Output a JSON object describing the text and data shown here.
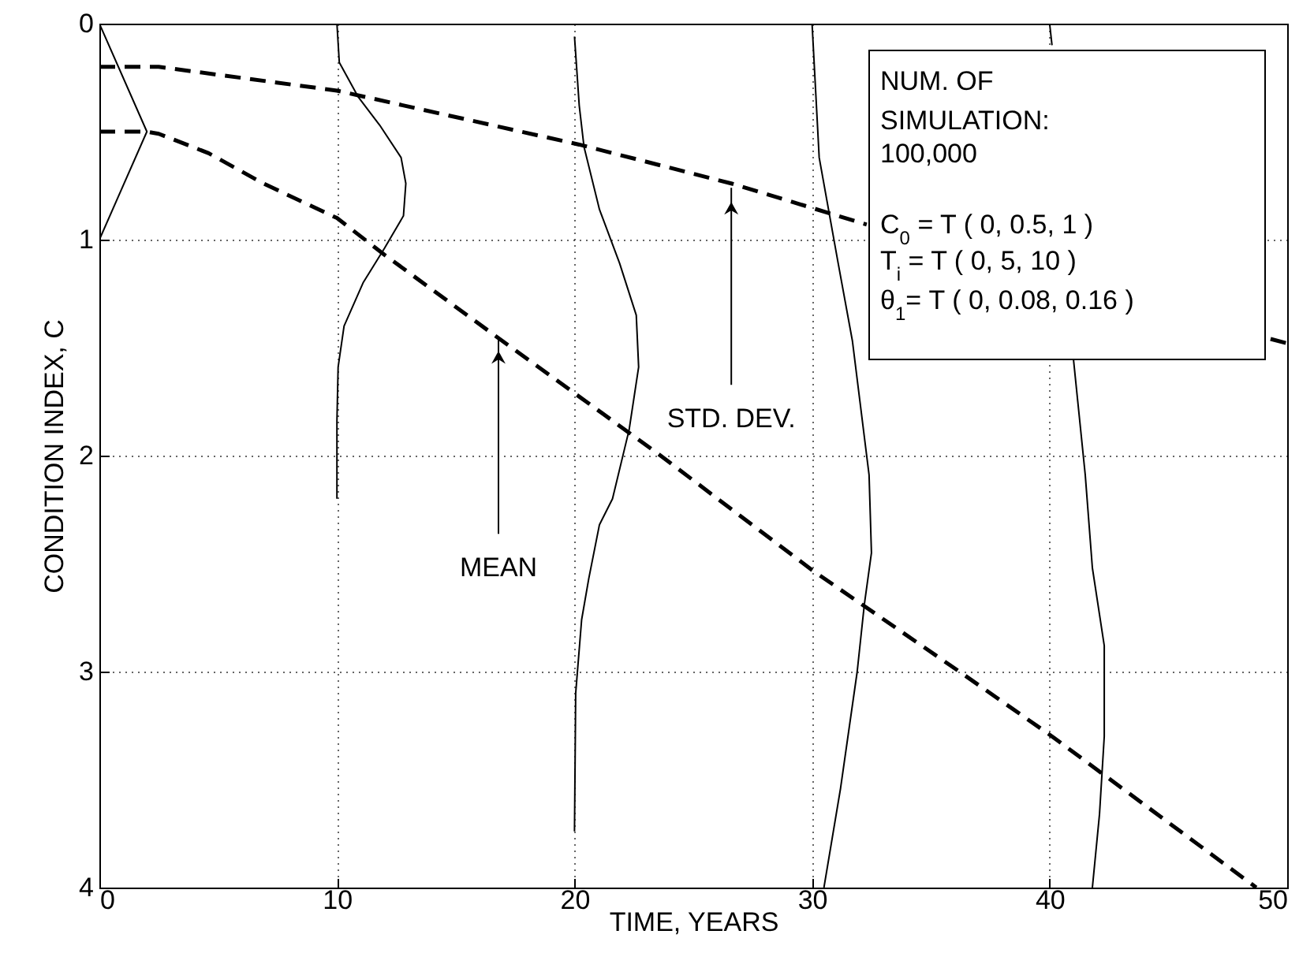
{
  "chart_data": {
    "type": "line",
    "xlabel": "TIME, YEARS",
    "ylabel": "CONDITION INDEX, C",
    "xlim": [
      0,
      50
    ],
    "ylim": [
      4,
      0
    ],
    "xticks": [
      0,
      10,
      20,
      30,
      40,
      50
    ],
    "yticks": [
      0,
      1,
      2,
      3,
      4
    ],
    "grid": true,
    "series": [
      {
        "color": "#000000",
        "line_style": "dashed",
        "x": [
          0,
          2,
          2.5,
          4.6,
          6.9,
          10,
          12,
          16.6,
          23.5,
          30,
          36.2,
          40.1,
          48.7
        ],
        "values": [
          0.5,
          0.5,
          0.51,
          0.6,
          0.74,
          0.9,
          1.07,
          1.44,
          1.99,
          2.53,
          3.0,
          3.3,
          4.0
        ]
      },
      {
        "color": "#000000",
        "line_style": "dashed",
        "x": [
          0,
          2.5,
          10,
          20.2,
          26.6,
          32.3,
          40,
          49.3,
          50
        ],
        "values": [
          0.2,
          0.2,
          0.31,
          0.56,
          0.74,
          0.93,
          null,
          1.46,
          1.48
        ]
      },
      {
        "color": "#000000",
        "line_style": "solid",
        "x": [
          0,
          2,
          0
        ],
        "values": [
          0,
          0.5,
          1
        ]
      },
      {
        "color": "#000000",
        "line_style": "solid",
        "x": [
          10,
          10.1,
          10.9,
          11.8,
          12.7,
          12.9,
          12.8,
          12,
          11.1,
          10.3,
          10.05,
          10,
          10
        ],
        "values": [
          0,
          0.18,
          0.34,
          0.47,
          0.62,
          0.74,
          0.89,
          1.04,
          1.2,
          1.4,
          1.59,
          1.84,
          2.2
        ]
      },
      {
        "color": "#000000",
        "line_style": "solid",
        "x": [
          20,
          20.2,
          20.4,
          21.05,
          21.9,
          22.6,
          22.7,
          22.3,
          21.6,
          21.05,
          20.6,
          20.3,
          20.05,
          20
        ],
        "values": [
          0.06,
          0.38,
          0.57,
          0.86,
          1.11,
          1.35,
          1.59,
          1.88,
          2.2,
          2.32,
          2.57,
          2.76,
          3.1,
          3.74
        ]
      },
      {
        "color": "#000000",
        "line_style": "solid",
        "x": [
          30,
          30.3,
          31.1,
          31.7,
          32.4,
          32.5,
          32.2,
          31.9,
          31.2,
          30.5
        ],
        "values": [
          0,
          0.62,
          1.11,
          1.47,
          2.09,
          2.45,
          2.69,
          3.0,
          3.54,
          4.0
        ]
      },
      {
        "color": "#000000",
        "line_style": "solid",
        "x": [
          40,
          40.1,
          40.5,
          41,
          41.5,
          41.8,
          42.3,
          42.3,
          42.1,
          41.8
        ],
        "values": [
          0,
          0.1,
          null,
          1.55,
          2.09,
          2.52,
          2.88,
          3.3,
          3.66,
          4.0
        ]
      }
    ],
    "annotations": [
      {
        "text": "MEAN",
        "x": 16.8,
        "y": 1.45
      },
      {
        "text": "STD. DEV.",
        "x": 26.6,
        "y": 0.76
      },
      "NUM. OF",
      "SIMULATION:",
      "100,000",
      "C$_{0}$ = T ( 0, 0.5, 1 )",
      "T$_{i}$ = T ( 0, 5, 10 )",
      "θ$_{1}$= T ( 0, 0.08, 0.16 )"
    ]
  }
}
